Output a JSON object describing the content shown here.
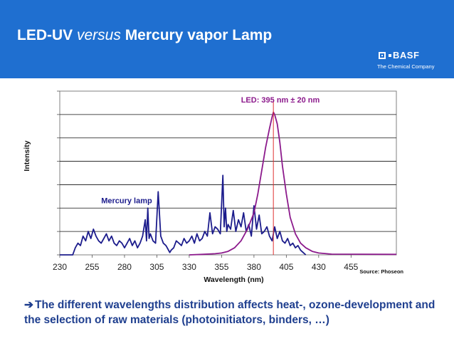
{
  "header": {
    "title_part1": "LED-UV ",
    "title_italic": "versus",
    "title_part2": " Mercury vapor Lamp"
  },
  "logo": {
    "brand": "BASF",
    "tagline": "The Chemical Company"
  },
  "colors": {
    "header_bg": "#1f6fd0",
    "mercury": "#1c1c8c",
    "led": "#8c1a8c",
    "led_marker": "#e03030",
    "conclusion_text": "#1f3f8f"
  },
  "chart_data": {
    "type": "line",
    "title": "",
    "xlabel": "Wavelength (nm)",
    "ylabel": "Intensity",
    "xlim": [
      230,
      490
    ],
    "ylim": [
      0,
      7
    ],
    "xticks": [
      "230",
      "255",
      "280",
      "305",
      "330",
      "355",
      "380",
      "405",
      "430",
      "455"
    ],
    "grid": true,
    "source": "Source: Phoseon",
    "annotations": [
      {
        "text": "Mercury lamp",
        "series": "Mercury lamp"
      },
      {
        "text": "LED: 395 nm ± 20 nm",
        "series": "LED"
      }
    ],
    "marker_x": 395,
    "series": [
      {
        "name": "Mercury lamp",
        "x": [
          230,
          240,
          242,
          244,
          246,
          248,
          250,
          252,
          254,
          256,
          258,
          260,
          262,
          264,
          266,
          268,
          270,
          272,
          274,
          276,
          278,
          280,
          282,
          284,
          286,
          288,
          290,
          292,
          294,
          296,
          297,
          298,
          299,
          300,
          302,
          304,
          306,
          308,
          310,
          312,
          313,
          314,
          315,
          316,
          318,
          320,
          322,
          324,
          326,
          328,
          330,
          332,
          334,
          336,
          338,
          340,
          342,
          344,
          346,
          348,
          350,
          352,
          354,
          356,
          357,
          358,
          359,
          360,
          362,
          364,
          366,
          368,
          370,
          372,
          374,
          376,
          378,
          380,
          382,
          384,
          386,
          388,
          390,
          392,
          394,
          396,
          398,
          400,
          402,
          404,
          406,
          408,
          410,
          412,
          414,
          416,
          418,
          420
        ],
        "y": [
          0,
          0,
          0.3,
          0.5,
          0.4,
          0.8,
          0.6,
          1.0,
          0.7,
          1.1,
          0.8,
          0.6,
          0.5,
          0.7,
          0.9,
          0.6,
          0.8,
          0.5,
          0.4,
          0.6,
          0.5,
          0.3,
          0.5,
          0.7,
          0.4,
          0.6,
          0.3,
          0.5,
          0.8,
          1.5,
          0.6,
          2.0,
          0.7,
          0.9,
          0.6,
          0.5,
          2.7,
          0.8,
          0.5,
          0.4,
          0.3,
          0.2,
          0.1,
          0.2,
          0.3,
          0.6,
          0.5,
          0.4,
          0.7,
          0.5,
          0.6,
          0.8,
          0.5,
          0.9,
          0.6,
          0.7,
          1.0,
          0.8,
          1.8,
          0.9,
          1.2,
          1.1,
          0.9,
          3.4,
          1.2,
          2.0,
          1.0,
          1.3,
          1.1,
          1.9,
          1.0,
          1.5,
          1.2,
          1.8,
          1.0,
          1.3,
          0.8,
          2.1,
          1.1,
          1.7,
          0.9,
          1.0,
          1.2,
          0.8,
          0.6,
          1.2,
          0.7,
          1.0,
          0.6,
          0.5,
          0.7,
          0.4,
          0.5,
          0.3,
          0.4,
          0.2,
          0.1,
          0
        ]
      },
      {
        "name": "LED",
        "x": [
          330,
          340,
          350,
          355,
          360,
          365,
          370,
          375,
          380,
          383,
          386,
          389,
          392,
          394,
          395,
          396,
          398,
          400,
          402,
          405,
          408,
          412,
          416,
          420,
          425,
          430,
          440,
          490
        ],
        "y": [
          0,
          0.02,
          0.05,
          0.08,
          0.15,
          0.3,
          0.6,
          1.1,
          1.8,
          2.6,
          3.6,
          4.6,
          5.4,
          5.9,
          6.1,
          6.0,
          5.6,
          4.8,
          3.8,
          2.6,
          1.6,
          0.9,
          0.5,
          0.3,
          0.15,
          0.08,
          0.03,
          0.02
        ]
      }
    ]
  },
  "conclusion": {
    "arrow": "➔",
    "text": "The different wavelengths distribution affects heat-, ozone-development and the selection of raw materials (photoinitiators, binders, …)"
  }
}
